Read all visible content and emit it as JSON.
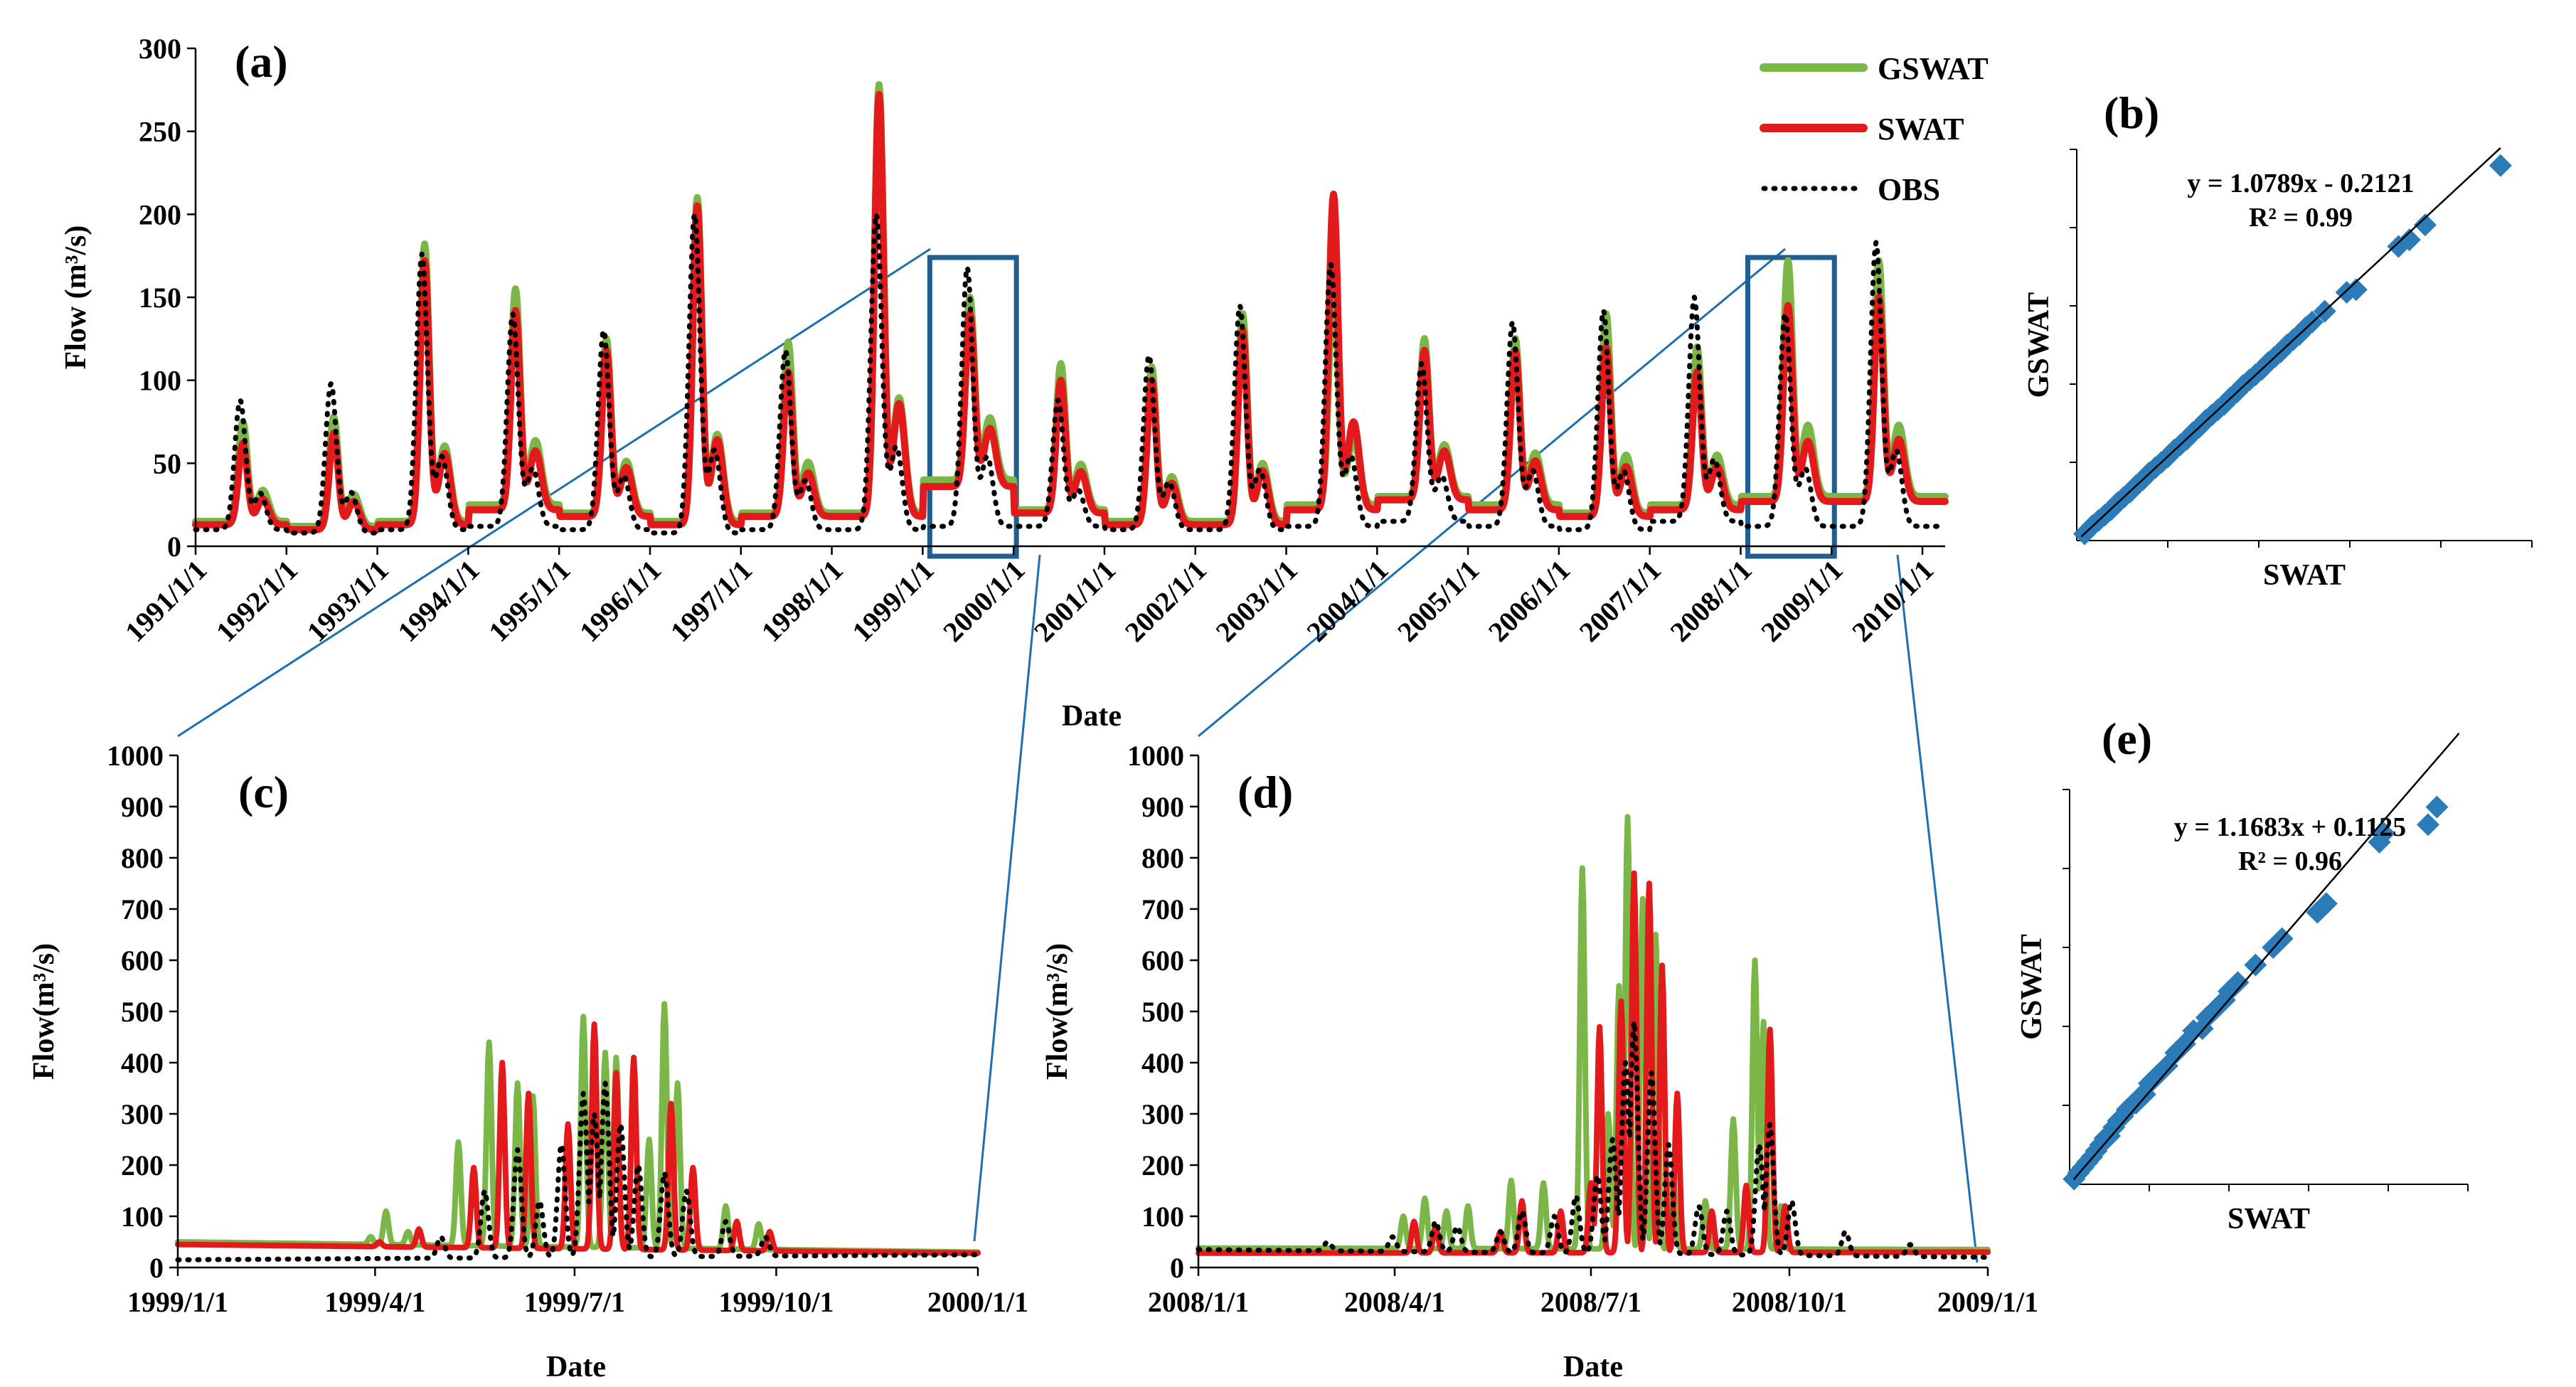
{
  "figure": {
    "connector_color": "#1f6fb0",
    "highlight_color": "#1f5e8e",
    "colors": {
      "gswat": "#7ab648",
      "swat": "#e31a1c",
      "obs": "#000000",
      "scatter": "#2b7bb9"
    }
  },
  "chart_data": [
    {
      "id": "a",
      "type": "line",
      "panel_label": "(a)",
      "xlabel": "Date",
      "ylabel": "Flow (m³/s)",
      "ylim": [
        0,
        300
      ],
      "yticks": [
        0,
        50,
        100,
        150,
        200,
        250,
        300
      ],
      "x_range": [
        1991,
        2010.25
      ],
      "xtick_labels": [
        "1991/1/1",
        "1992/1/1",
        "1993/1/1",
        "1994/1/1",
        "1995/1/1",
        "1996/1/1",
        "1997/1/1",
        "1998/1/1",
        "1999/1/1",
        "2000/1/1",
        "2001/1/1",
        "2002/1/1",
        "2003/1/1",
        "2004/1/1",
        "2005/1/1",
        "2006/1/1",
        "2007/1/1",
        "2008/1/1",
        "2009/1/1",
        "2010/1/1"
      ],
      "highlight_ranges": [
        [
          1999.0,
          2000.0
        ],
        [
          2008.0,
          2009.0
        ]
      ],
      "legend": [
        "GSWAT",
        "SWAT",
        "OBS"
      ],
      "annual_peaks": {
        "year": [
          1991,
          1992,
          1993,
          1994,
          1995,
          1996,
          1997,
          1998,
          1999,
          2000,
          2001,
          2002,
          2003,
          2004,
          2005,
          2006,
          2007,
          2008,
          2009
        ],
        "GSWAT": [
          75,
          78,
          182,
          155,
          125,
          210,
          123,
          278,
          150,
          110,
          108,
          140,
          160,
          125,
          125,
          140,
          120,
          172,
          172
        ],
        "SWAT": [
          62,
          68,
          172,
          142,
          118,
          205,
          105,
          272,
          140,
          100,
          100,
          130,
          212,
          118,
          118,
          120,
          105,
          145,
          150
        ],
        "OBS": [
          88,
          98,
          176,
          140,
          130,
          200,
          118,
          200,
          168,
          88,
          115,
          145,
          170,
          110,
          135,
          142,
          150,
          140,
          183
        ]
      },
      "annual_base": {
        "GSWAT": [
          15,
          12,
          15,
          25,
          20,
          15,
          20,
          20,
          40,
          22,
          15,
          15,
          25,
          30,
          25,
          20,
          25,
          30,
          30
        ],
        "SWAT": [
          13,
          10,
          13,
          22,
          18,
          13,
          18,
          18,
          36,
          20,
          13,
          13,
          22,
          28,
          22,
          18,
          22,
          27,
          27
        ],
        "OBS": [
          10,
          8,
          10,
          12,
          10,
          8,
          10,
          10,
          12,
          12,
          10,
          10,
          12,
          15,
          12,
          10,
          15,
          12,
          12
        ]
      }
    },
    {
      "id": "b",
      "type": "scatter",
      "panel_label": "(b)",
      "xlabel": "SWAT",
      "ylabel": "GSWAT",
      "equation": "y = 1.0789x - 0.2121",
      "r2": "R² = 0.99",
      "slope": 1.0789,
      "intercept": -0.2121,
      "range": [
        0,
        290
      ],
      "points": [
        [
          5,
          5
        ],
        [
          10,
          11
        ],
        [
          14,
          15
        ],
        [
          18,
          19
        ],
        [
          22,
          23
        ],
        [
          26,
          28
        ],
        [
          30,
          32
        ],
        [
          34,
          36
        ],
        [
          38,
          41
        ],
        [
          42,
          45
        ],
        [
          46,
          50
        ],
        [
          50,
          54
        ],
        [
          54,
          58
        ],
        [
          58,
          62
        ],
        [
          62,
          67
        ],
        [
          66,
          71
        ],
        [
          70,
          75
        ],
        [
          74,
          80
        ],
        [
          78,
          84
        ],
        [
          82,
          89
        ],
        [
          86,
          93
        ],
        [
          90,
          97
        ],
        [
          94,
          101
        ],
        [
          98,
          106
        ],
        [
          102,
          110
        ],
        [
          106,
          115
        ],
        [
          110,
          119
        ],
        [
          114,
          123
        ],
        [
          118,
          127
        ],
        [
          122,
          132
        ],
        [
          126,
          136
        ],
        [
          130,
          140
        ],
        [
          134,
          145
        ],
        [
          138,
          149
        ],
        [
          142,
          153
        ],
        [
          146,
          158
        ],
        [
          150,
          162
        ],
        [
          158,
          170
        ],
        [
          172,
          184
        ],
        [
          178,
          186
        ],
        [
          205,
          218
        ],
        [
          212,
          223
        ],
        [
          222,
          234
        ],
        [
          270,
          278
        ]
      ]
    },
    {
      "id": "c",
      "type": "line",
      "panel_label": "(c)",
      "xlabel": "Date",
      "ylabel": "Flow(m³/s)",
      "ylim": [
        0,
        1000
      ],
      "yticks": [
        0,
        100,
        200,
        300,
        400,
        500,
        600,
        700,
        800,
        900,
        1000
      ],
      "x_range": [
        0,
        365
      ],
      "xtick_days": [
        0,
        90,
        181,
        273,
        365
      ],
      "xtick_labels": [
        "1999/1/1",
        "1999/4/1",
        "1999/7/1",
        "1999/10/1",
        "2000/1/1"
      ],
      "base": {
        "GSWAT": [
          50,
          30
        ],
        "SWAT": [
          45,
          28
        ],
        "OBS": [
          15,
          25
        ]
      },
      "spikes": {
        "GSWAT": [
          [
            88,
            60
          ],
          [
            95,
            110
          ],
          [
            105,
            70
          ],
          [
            128,
            245
          ],
          [
            142,
            440
          ],
          [
            155,
            360
          ],
          [
            162,
            335
          ],
          [
            185,
            490
          ],
          [
            195,
            420
          ],
          [
            200,
            410
          ],
          [
            215,
            250
          ],
          [
            222,
            515
          ],
          [
            228,
            360
          ],
          [
            250,
            120
          ],
          [
            265,
            85
          ]
        ],
        "SWAT": [
          [
            92,
            50
          ],
          [
            110,
            75
          ],
          [
            135,
            195
          ],
          [
            148,
            400
          ],
          [
            160,
            340
          ],
          [
            178,
            280
          ],
          [
            190,
            475
          ],
          [
            200,
            380
          ],
          [
            208,
            410
          ],
          [
            225,
            320
          ],
          [
            235,
            195
          ],
          [
            255,
            90
          ],
          [
            270,
            70
          ]
        ],
        "OBS": [
          [
            120,
            60
          ],
          [
            140,
            150
          ],
          [
            155,
            230
          ],
          [
            165,
            130
          ],
          [
            175,
            240
          ],
          [
            185,
            340
          ],
          [
            190,
            300
          ],
          [
            195,
            360
          ],
          [
            202,
            280
          ],
          [
            210,
            200
          ],
          [
            222,
            185
          ],
          [
            232,
            150
          ],
          [
            250,
            90
          ],
          [
            268,
            60
          ]
        ]
      }
    },
    {
      "id": "d",
      "type": "line",
      "panel_label": "(d)",
      "xlabel": "Date",
      "ylabel": "Flow(m³/s)",
      "ylim": [
        0,
        1000
      ],
      "yticks": [
        0,
        100,
        200,
        300,
        400,
        500,
        600,
        700,
        800,
        900,
        1000
      ],
      "x_range": [
        0,
        366
      ],
      "xtick_days": [
        0,
        91,
        182,
        274,
        366
      ],
      "xtick_labels": [
        "2008/1/1",
        "2008/4/1",
        "2008/7/1",
        "2008/10/1",
        "2009/1/1"
      ],
      "base": {
        "GSWAT": [
          38,
          35
        ],
        "SWAT": [
          28,
          30
        ],
        "OBS": [
          35,
          20
        ]
      },
      "spikes": {
        "GSWAT": [
          [
            95,
            100
          ],
          [
            105,
            135
          ],
          [
            115,
            110
          ],
          [
            125,
            120
          ],
          [
            145,
            170
          ],
          [
            160,
            165
          ],
          [
            178,
            780
          ],
          [
            190,
            300
          ],
          [
            195,
            550
          ],
          [
            199,
            880
          ],
          [
            206,
            720
          ],
          [
            212,
            650
          ],
          [
            220,
            180
          ],
          [
            235,
            130
          ],
          [
            248,
            290
          ],
          [
            258,
            600
          ],
          [
            262,
            480
          ],
          [
            270,
            120
          ]
        ],
        "SWAT": [
          [
            100,
            90
          ],
          [
            110,
            80
          ],
          [
            140,
            70
          ],
          [
            150,
            130
          ],
          [
            168,
            110
          ],
          [
            182,
            165
          ],
          [
            186,
            470
          ],
          [
            196,
            520
          ],
          [
            202,
            770
          ],
          [
            209,
            750
          ],
          [
            215,
            590
          ],
          [
            222,
            340
          ],
          [
            238,
            110
          ],
          [
            254,
            160
          ],
          [
            265,
            465
          ],
          [
            272,
            120
          ]
        ],
        "OBS": [
          [
            60,
            50
          ],
          [
            90,
            60
          ],
          [
            110,
            90
          ],
          [
            120,
            80
          ],
          [
            140,
            70
          ],
          [
            150,
            110
          ],
          [
            165,
            100
          ],
          [
            175,
            140
          ],
          [
            185,
            180
          ],
          [
            192,
            250
          ],
          [
            198,
            400
          ],
          [
            202,
            480
          ],
          [
            210,
            380
          ],
          [
            218,
            240
          ],
          [
            232,
            120
          ],
          [
            245,
            110
          ],
          [
            260,
            240
          ],
          [
            265,
            280
          ],
          [
            275,
            130
          ],
          [
            300,
            70
          ],
          [
            330,
            45
          ]
        ]
      }
    },
    {
      "id": "e",
      "type": "scatter",
      "panel_label": "(e)",
      "xlabel": "SWAT",
      "ylabel": "GSWAT",
      "equation": "y = 1.1683x + 0.1125",
      "r2": "R² = 0.96",
      "slope": 1.1683,
      "intercept": 0.1125,
      "range": [
        0,
        900
      ],
      "points": [
        [
          10,
          12
        ],
        [
          20,
          26
        ],
        [
          30,
          38
        ],
        [
          40,
          50
        ],
        [
          50,
          62
        ],
        [
          60,
          76
        ],
        [
          70,
          90
        ],
        [
          80,
          105
        ],
        [
          90,
          110
        ],
        [
          100,
          130
        ],
        [
          110,
          145
        ],
        [
          120,
          155
        ],
        [
          130,
          170
        ],
        [
          140,
          180
        ],
        [
          150,
          185
        ],
        [
          160,
          200
        ],
        [
          170,
          205
        ],
        [
          180,
          230
        ],
        [
          190,
          240
        ],
        [
          200,
          250
        ],
        [
          220,
          270
        ],
        [
          240,
          300
        ],
        [
          260,
          320
        ],
        [
          280,
          350
        ],
        [
          300,
          355
        ],
        [
          310,
          380
        ],
        [
          330,
          400
        ],
        [
          350,
          420
        ],
        [
          360,
          440
        ],
        [
          380,
          460
        ],
        [
          420,
          500
        ],
        [
          460,
          540
        ],
        [
          480,
          560
        ],
        [
          560,
          620
        ],
        [
          580,
          640
        ],
        [
          700,
          780
        ],
        [
          710,
          800
        ],
        [
          810,
          820
        ],
        [
          830,
          860
        ]
      ]
    }
  ]
}
